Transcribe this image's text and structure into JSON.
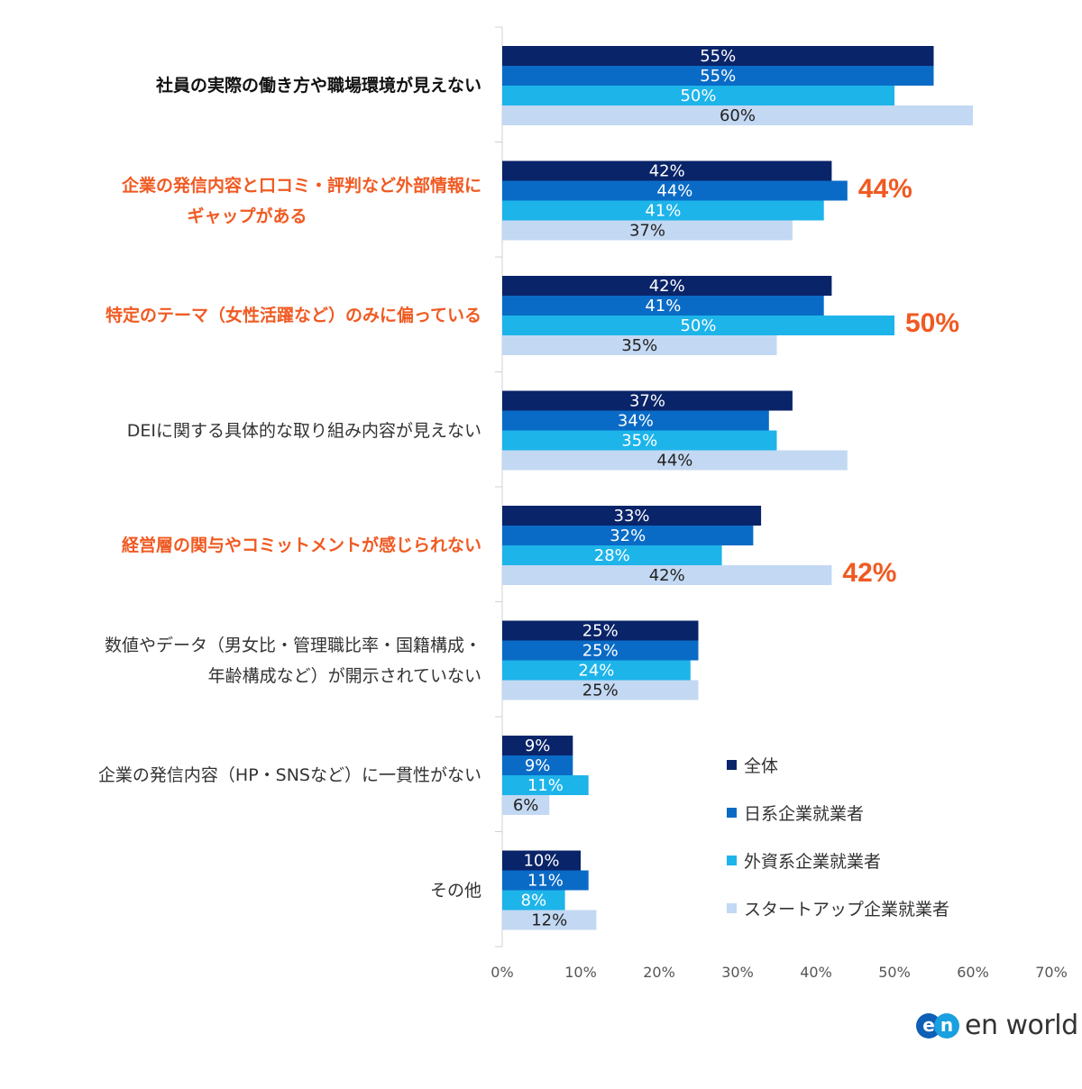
{
  "chart_data": {
    "type": "bar",
    "orientation": "horizontal",
    "title": "",
    "xlabel": "",
    "ylabel": "",
    "xlim": [
      0,
      70
    ],
    "x_ticks": [
      "0%",
      "10%",
      "20%",
      "30%",
      "40%",
      "50%",
      "60%",
      "70%"
    ],
    "categories": [
      "社員の実際の働き方や職場環境が見えない",
      "企業の発信内容と口コミ・評判など外部情報にギャップがある",
      "特定のテーマ（女性活躍など）のみに偏っている",
      "DEIに関する具体的な取り組み内容が見えない",
      "経営層の関与やコミットメントが感じられない",
      "数値やデータ（男女比・管理職比率・国籍構成・年齢構成など）が開示されていない",
      "企業の発信内容（HP・SNSなど）に一貫性がない",
      "その他"
    ],
    "category_label_lines": [
      [
        "社員の実際の働き方や職場環境が見えない"
      ],
      [
        "企業の発信内容と口コミ・評判など外部情報に",
        "ギャップがある"
      ],
      [
        "特定のテーマ（女性活躍など）のみに偏っている"
      ],
      [
        "DEIに関する具体的な取り組み内容が見えない"
      ],
      [
        "経営層の関与やコミットメントが感じられない"
      ],
      [
        "数値やデータ（男女比・管理職比率・国籍構成・",
        "年齢構成など）が開示されていない"
      ],
      [
        "企業の発信内容（HP・SNSなど）に一貫性がない"
      ],
      [
        "その他"
      ]
    ],
    "category_styles": [
      "bold",
      "orange",
      "orange",
      "normal",
      "orange",
      "normal",
      "normal",
      "normal"
    ],
    "series": [
      {
        "name": "全体",
        "color": "#0a2469",
        "label_color": "#ffffff",
        "values": [
          55,
          42,
          42,
          37,
          33,
          25,
          9,
          10
        ],
        "labels": [
          "55%",
          "42%",
          "42%",
          "37%",
          "33%",
          "25%",
          "9%",
          "10%"
        ]
      },
      {
        "name": "日系企業就業者",
        "color": "#0a6bc6",
        "label_color": "#ffffff",
        "values": [
          55,
          44,
          41,
          34,
          32,
          25,
          9,
          11
        ],
        "labels": [
          "55%",
          "44%",
          "41%",
          "34%",
          "32%",
          "25%",
          "9%",
          "11%"
        ]
      },
      {
        "name": "外資系企業就業者",
        "color": "#1db4ea",
        "label_color": "#ffffff",
        "values": [
          50,
          41,
          50,
          35,
          28,
          24,
          11,
          8
        ],
        "labels": [
          "50%",
          "41%",
          "50%",
          "35%",
          "28%",
          "24%",
          "11%",
          "8%"
        ]
      },
      {
        "name": "スタートアップ企業就業者",
        "color": "#c3d8f2",
        "label_color": "#222222",
        "values": [
          60,
          37,
          35,
          44,
          42,
          25,
          6,
          12
        ],
        "labels": [
          "60%",
          "37%",
          "35%",
          "44%",
          "42%",
          "25%",
          "6%",
          "12%"
        ]
      }
    ],
    "callouts": [
      {
        "category_index": 1,
        "series_index": 1,
        "text": "44%"
      },
      {
        "category_index": 2,
        "series_index": 2,
        "text": "50%"
      },
      {
        "category_index": 4,
        "series_index": 3,
        "text": "42%"
      }
    ],
    "grid": false,
    "legend_position": "bottom-right",
    "accent_color": "#f05a22"
  },
  "logo": {
    "mark_left": "e",
    "mark_right": "n",
    "text": "en world"
  }
}
